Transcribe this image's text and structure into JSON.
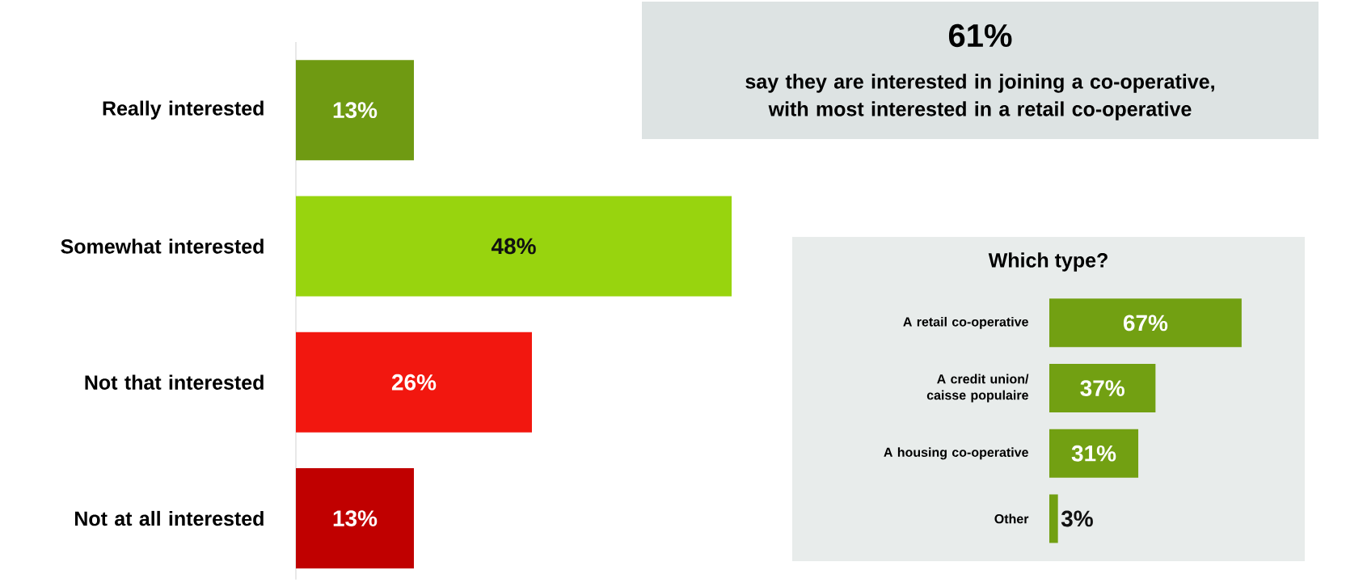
{
  "chart_data": [
    {
      "type": "bar",
      "orientation": "horizontal",
      "categories": [
        "Really interested",
        "Somewhat interested",
        "Not that interested",
        "Not at all interested"
      ],
      "values": [
        13,
        48,
        26,
        13
      ],
      "colors": [
        "#6f9a12",
        "#98d40e",
        "#f2170f",
        "#c00000"
      ],
      "value_labels": [
        "13%",
        "48%",
        "26%",
        "13%"
      ]
    },
    {
      "type": "other",
      "title": "61%",
      "subtitle": "say they are interested in joining a co-operative, with most interested in a retail co-operative"
    },
    {
      "type": "bar",
      "orientation": "horizontal",
      "title": "Which type?",
      "categories": [
        "A retail co-operative",
        "A credit union/ caisse populaire",
        "A housing co-operative",
        "Other"
      ],
      "values": [
        67,
        37,
        31,
        3
      ],
      "color": "#72a012",
      "value_labels": [
        "67%",
        "37%",
        "31%",
        "3%"
      ]
    }
  ]
}
